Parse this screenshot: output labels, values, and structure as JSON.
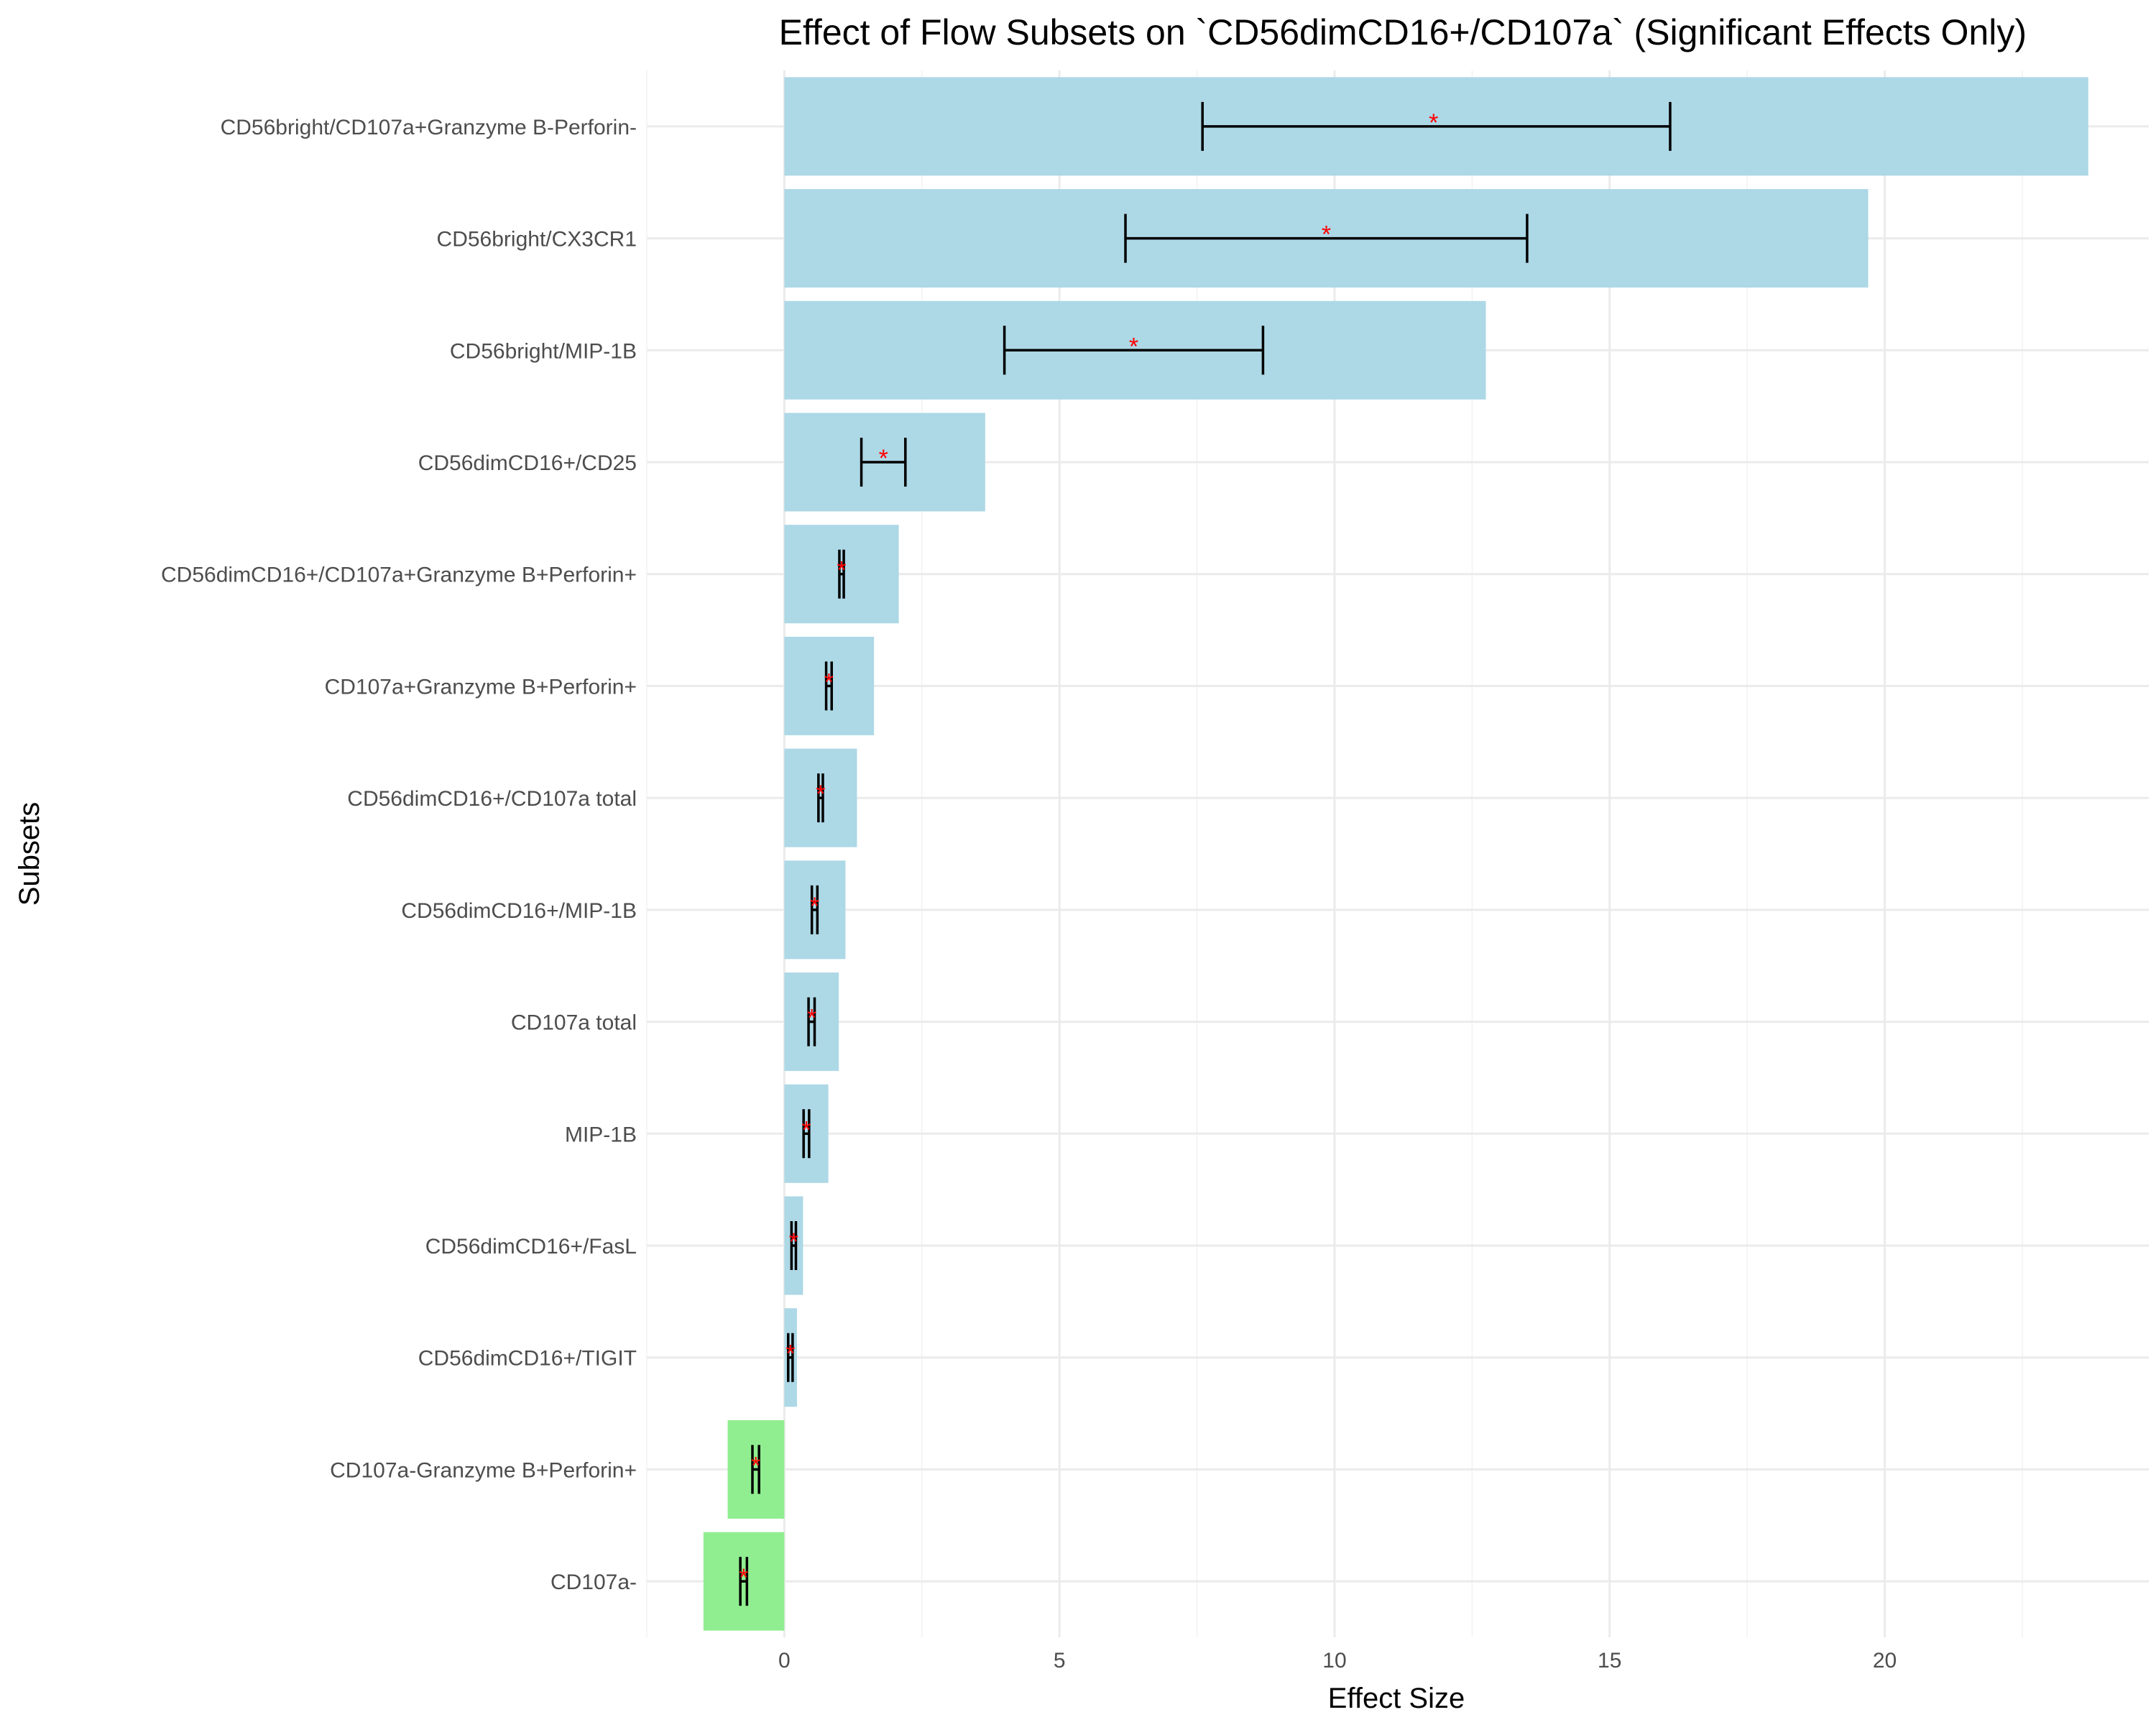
{
  "chart_data": {
    "type": "bar",
    "orientation": "horizontal",
    "title": "Effect of Flow Subsets on `CD56dimCD16+/CD107a` (Significant Effects Only)",
    "xlabel": "Effect Size",
    "ylabel": "Subsets",
    "xlim": [
      -2.5,
      24.8
    ],
    "xticks": [
      0,
      5,
      10,
      15,
      20
    ],
    "grid": true,
    "legend": "none",
    "significance_marker": "*",
    "colors": {
      "positive": "#add8e6",
      "negative": "#90ee90",
      "error_bar": "#000000",
      "marker": "#ff0000"
    },
    "categories": [
      "CD56bright/CD107a+Granzyme B-Perforin-",
      "CD56bright/CX3CR1",
      "CD56bright/MIP-1B",
      "CD56dimCD16+/CD25",
      "CD56dimCD16+/CD107a+Granzyme B+Perforin+",
      "CD107a+Granzyme B+Perforin+",
      "CD56dimCD16+/CD107a total",
      "CD56dimCD16+/MIP-1B",
      "CD107a total",
      "MIP-1B",
      "CD56dimCD16+/FasL",
      "CD56dimCD16+/TIGIT",
      "CD107a-Granzyme B+Perforin+",
      "CD107a-"
    ],
    "values": [
      23.7,
      19.7,
      12.75,
      3.65,
      2.08,
      1.63,
      1.32,
      1.11,
      0.99,
      0.8,
      0.34,
      0.23,
      -1.03,
      -1.47
    ],
    "estimates": [
      11.8,
      9.85,
      6.35,
      1.8,
      1.04,
      0.81,
      0.66,
      0.55,
      0.5,
      0.4,
      0.17,
      0.11,
      -0.52,
      -0.74
    ],
    "ci_low": [
      7.6,
      6.2,
      4.0,
      1.4,
      1.0,
      0.76,
      0.62,
      0.5,
      0.44,
      0.35,
      0.13,
      0.07,
      -0.58,
      -0.8
    ],
    "ci_high": [
      16.1,
      13.5,
      8.7,
      2.2,
      1.08,
      0.86,
      0.7,
      0.6,
      0.55,
      0.45,
      0.21,
      0.15,
      -0.46,
      -0.68
    ]
  }
}
